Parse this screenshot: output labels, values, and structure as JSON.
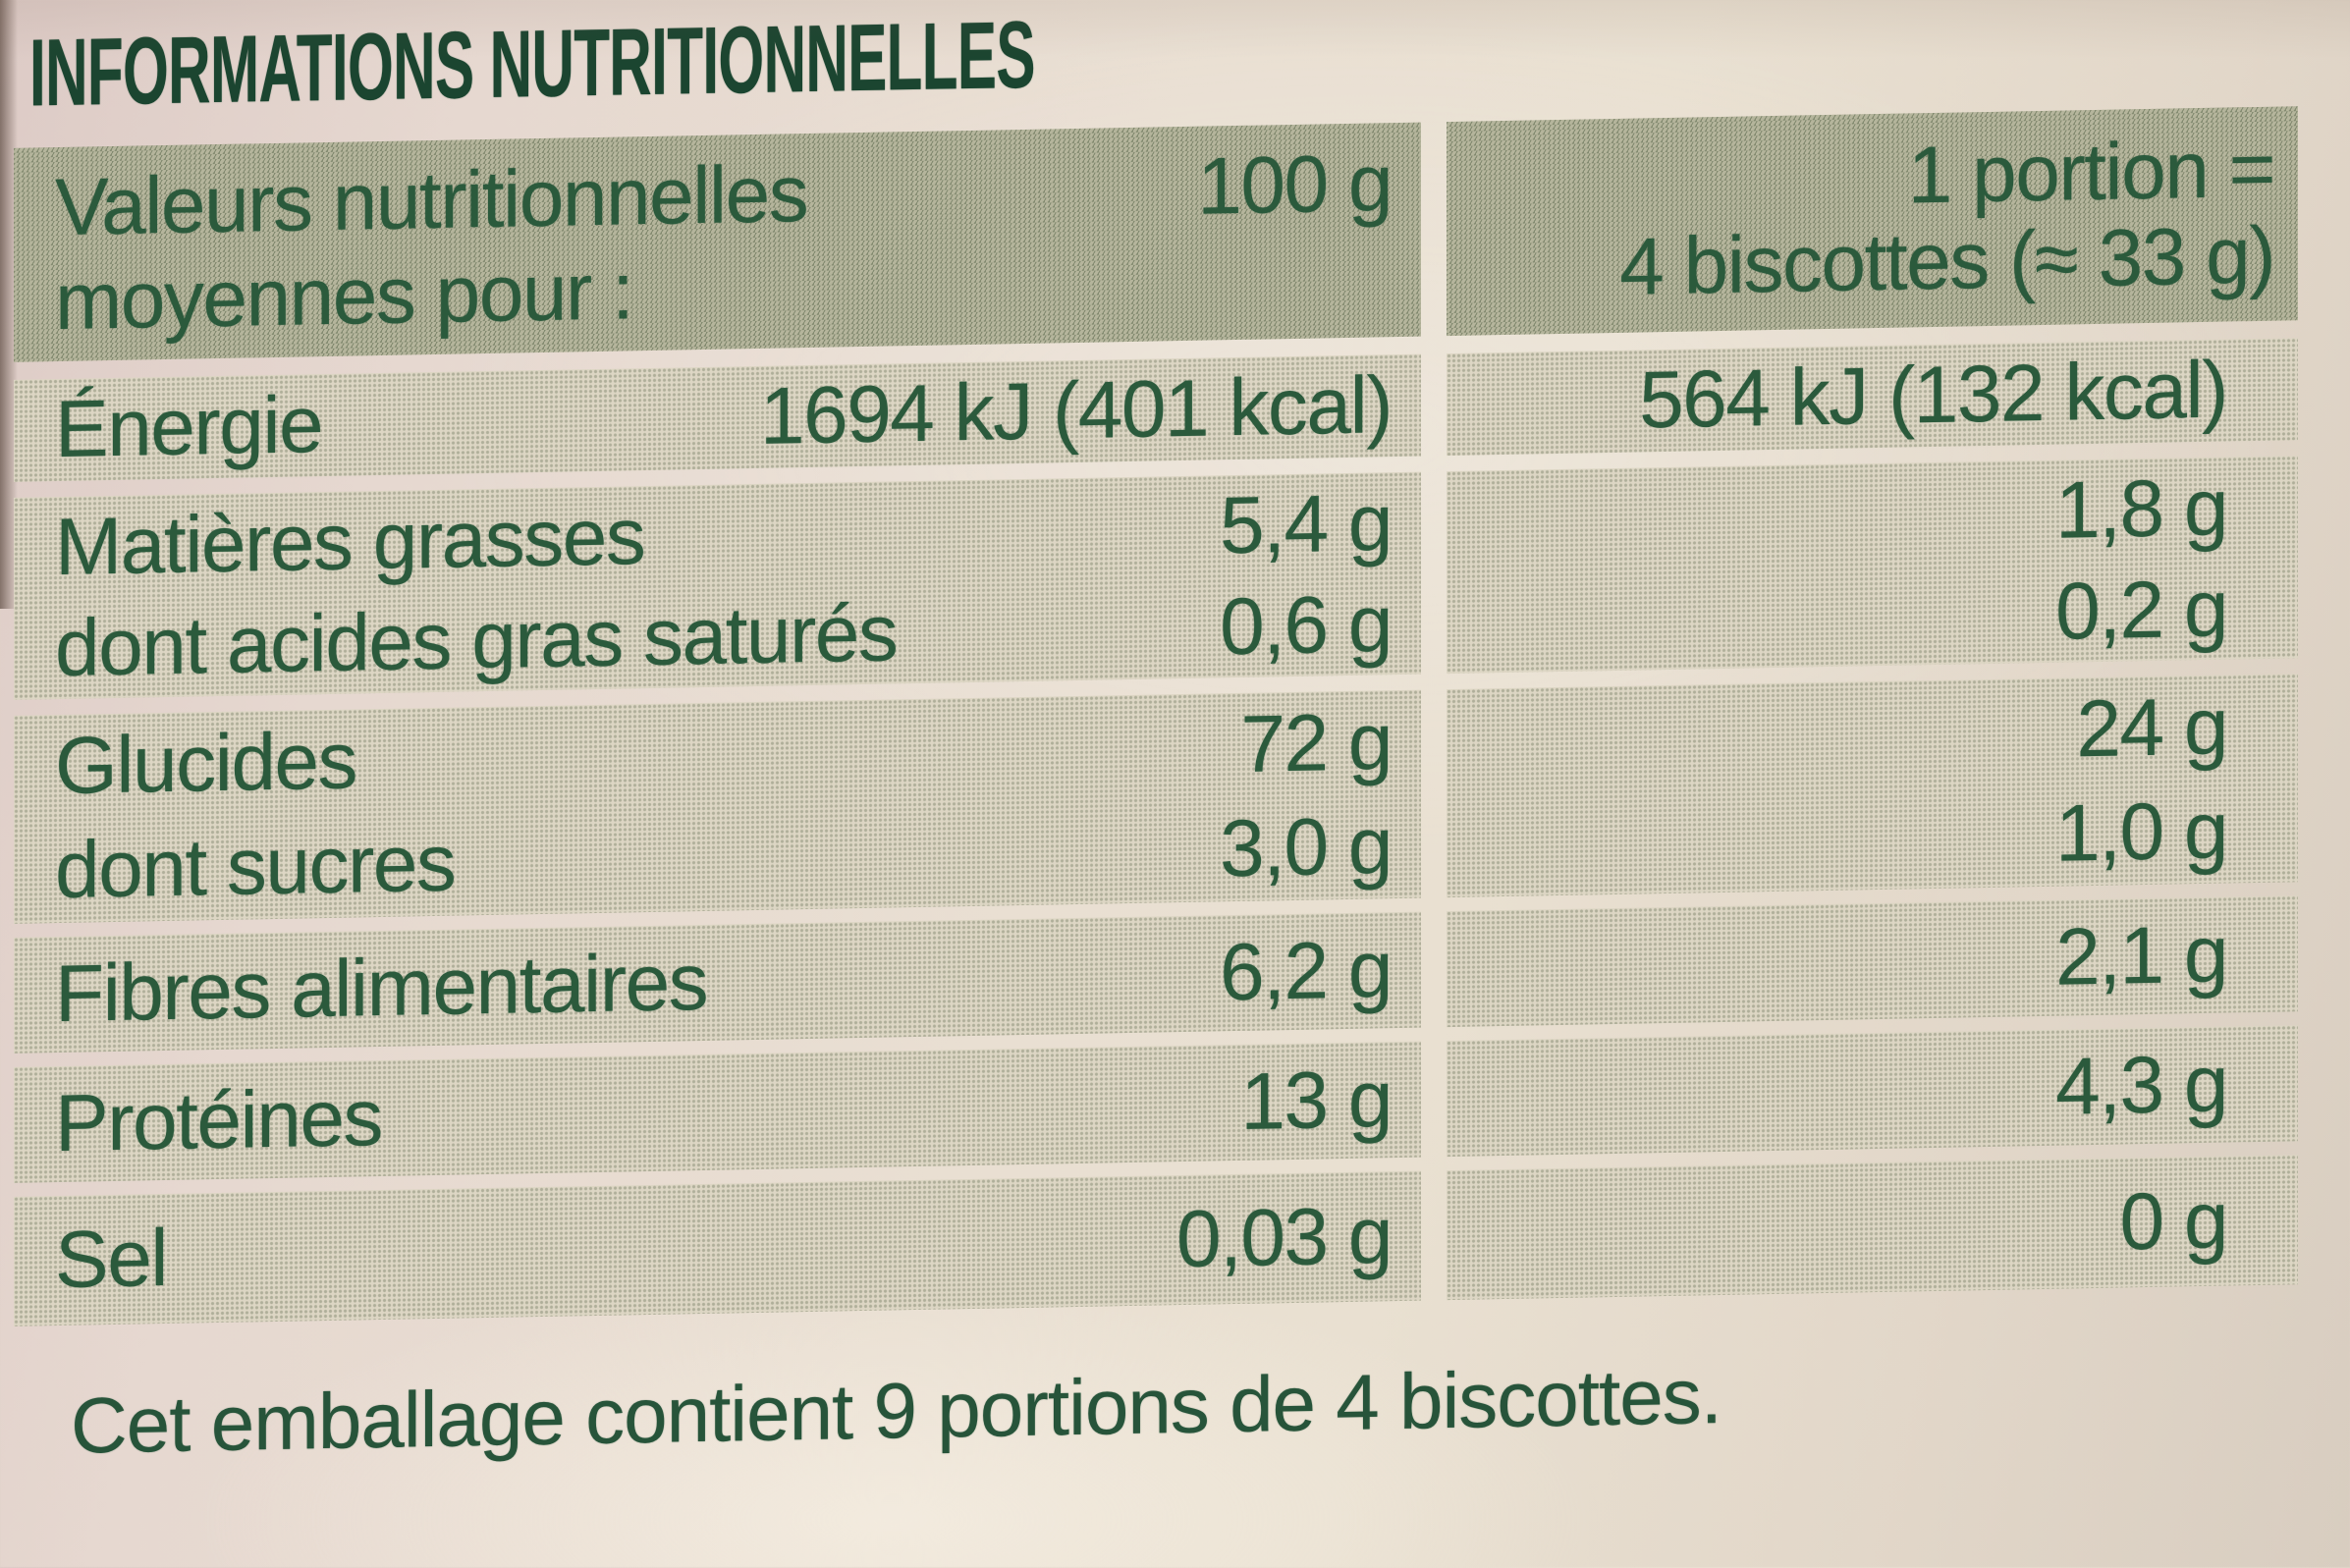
{
  "title": "INFORMATIONS NUTRITIONNELLES",
  "table": {
    "header": {
      "left_line1": "Valeurs nutritionnelles",
      "left_line2": "moyennes pour :",
      "col_100g": "100 g",
      "portion_line1": "1 portion =",
      "portion_line2": "4 biscottes (≈ 33 g)"
    },
    "rows": [
      {
        "label": "Énergie",
        "per_100g": "1694 kJ (401 kcal)",
        "per_portion": "564 kJ (132 kcal)"
      },
      {
        "label": "Matières grasses",
        "per_100g": "5,4 g",
        "per_portion": "1,8 g"
      },
      {
        "label": "dont acides gras saturés",
        "per_100g": "0,6 g",
        "per_portion": "0,2 g"
      },
      {
        "label": "Glucides",
        "per_100g": "72 g",
        "per_portion": "24 g"
      },
      {
        "label": "dont sucres",
        "per_100g": "3,0 g",
        "per_portion": "1,0 g"
      },
      {
        "label": "Fibres alimentaires",
        "per_100g": "6,2 g",
        "per_portion": "2,1 g"
      },
      {
        "label": "Protéines",
        "per_100g": "13 g",
        "per_portion": "4,3 g"
      },
      {
        "label": "Sel",
        "per_100g": "0,03 g",
        "per_portion": "0 g"
      }
    ]
  },
  "footer": "Cet emballage contient 9 portions de 4 biscottes.",
  "colors": {
    "text_green": "#2b5a3c",
    "title_green": "#1b4530",
    "row_band_tint": "#ddd6c4",
    "header_band_tint": "#b5b59c",
    "paper": "#e7dcd2"
  }
}
